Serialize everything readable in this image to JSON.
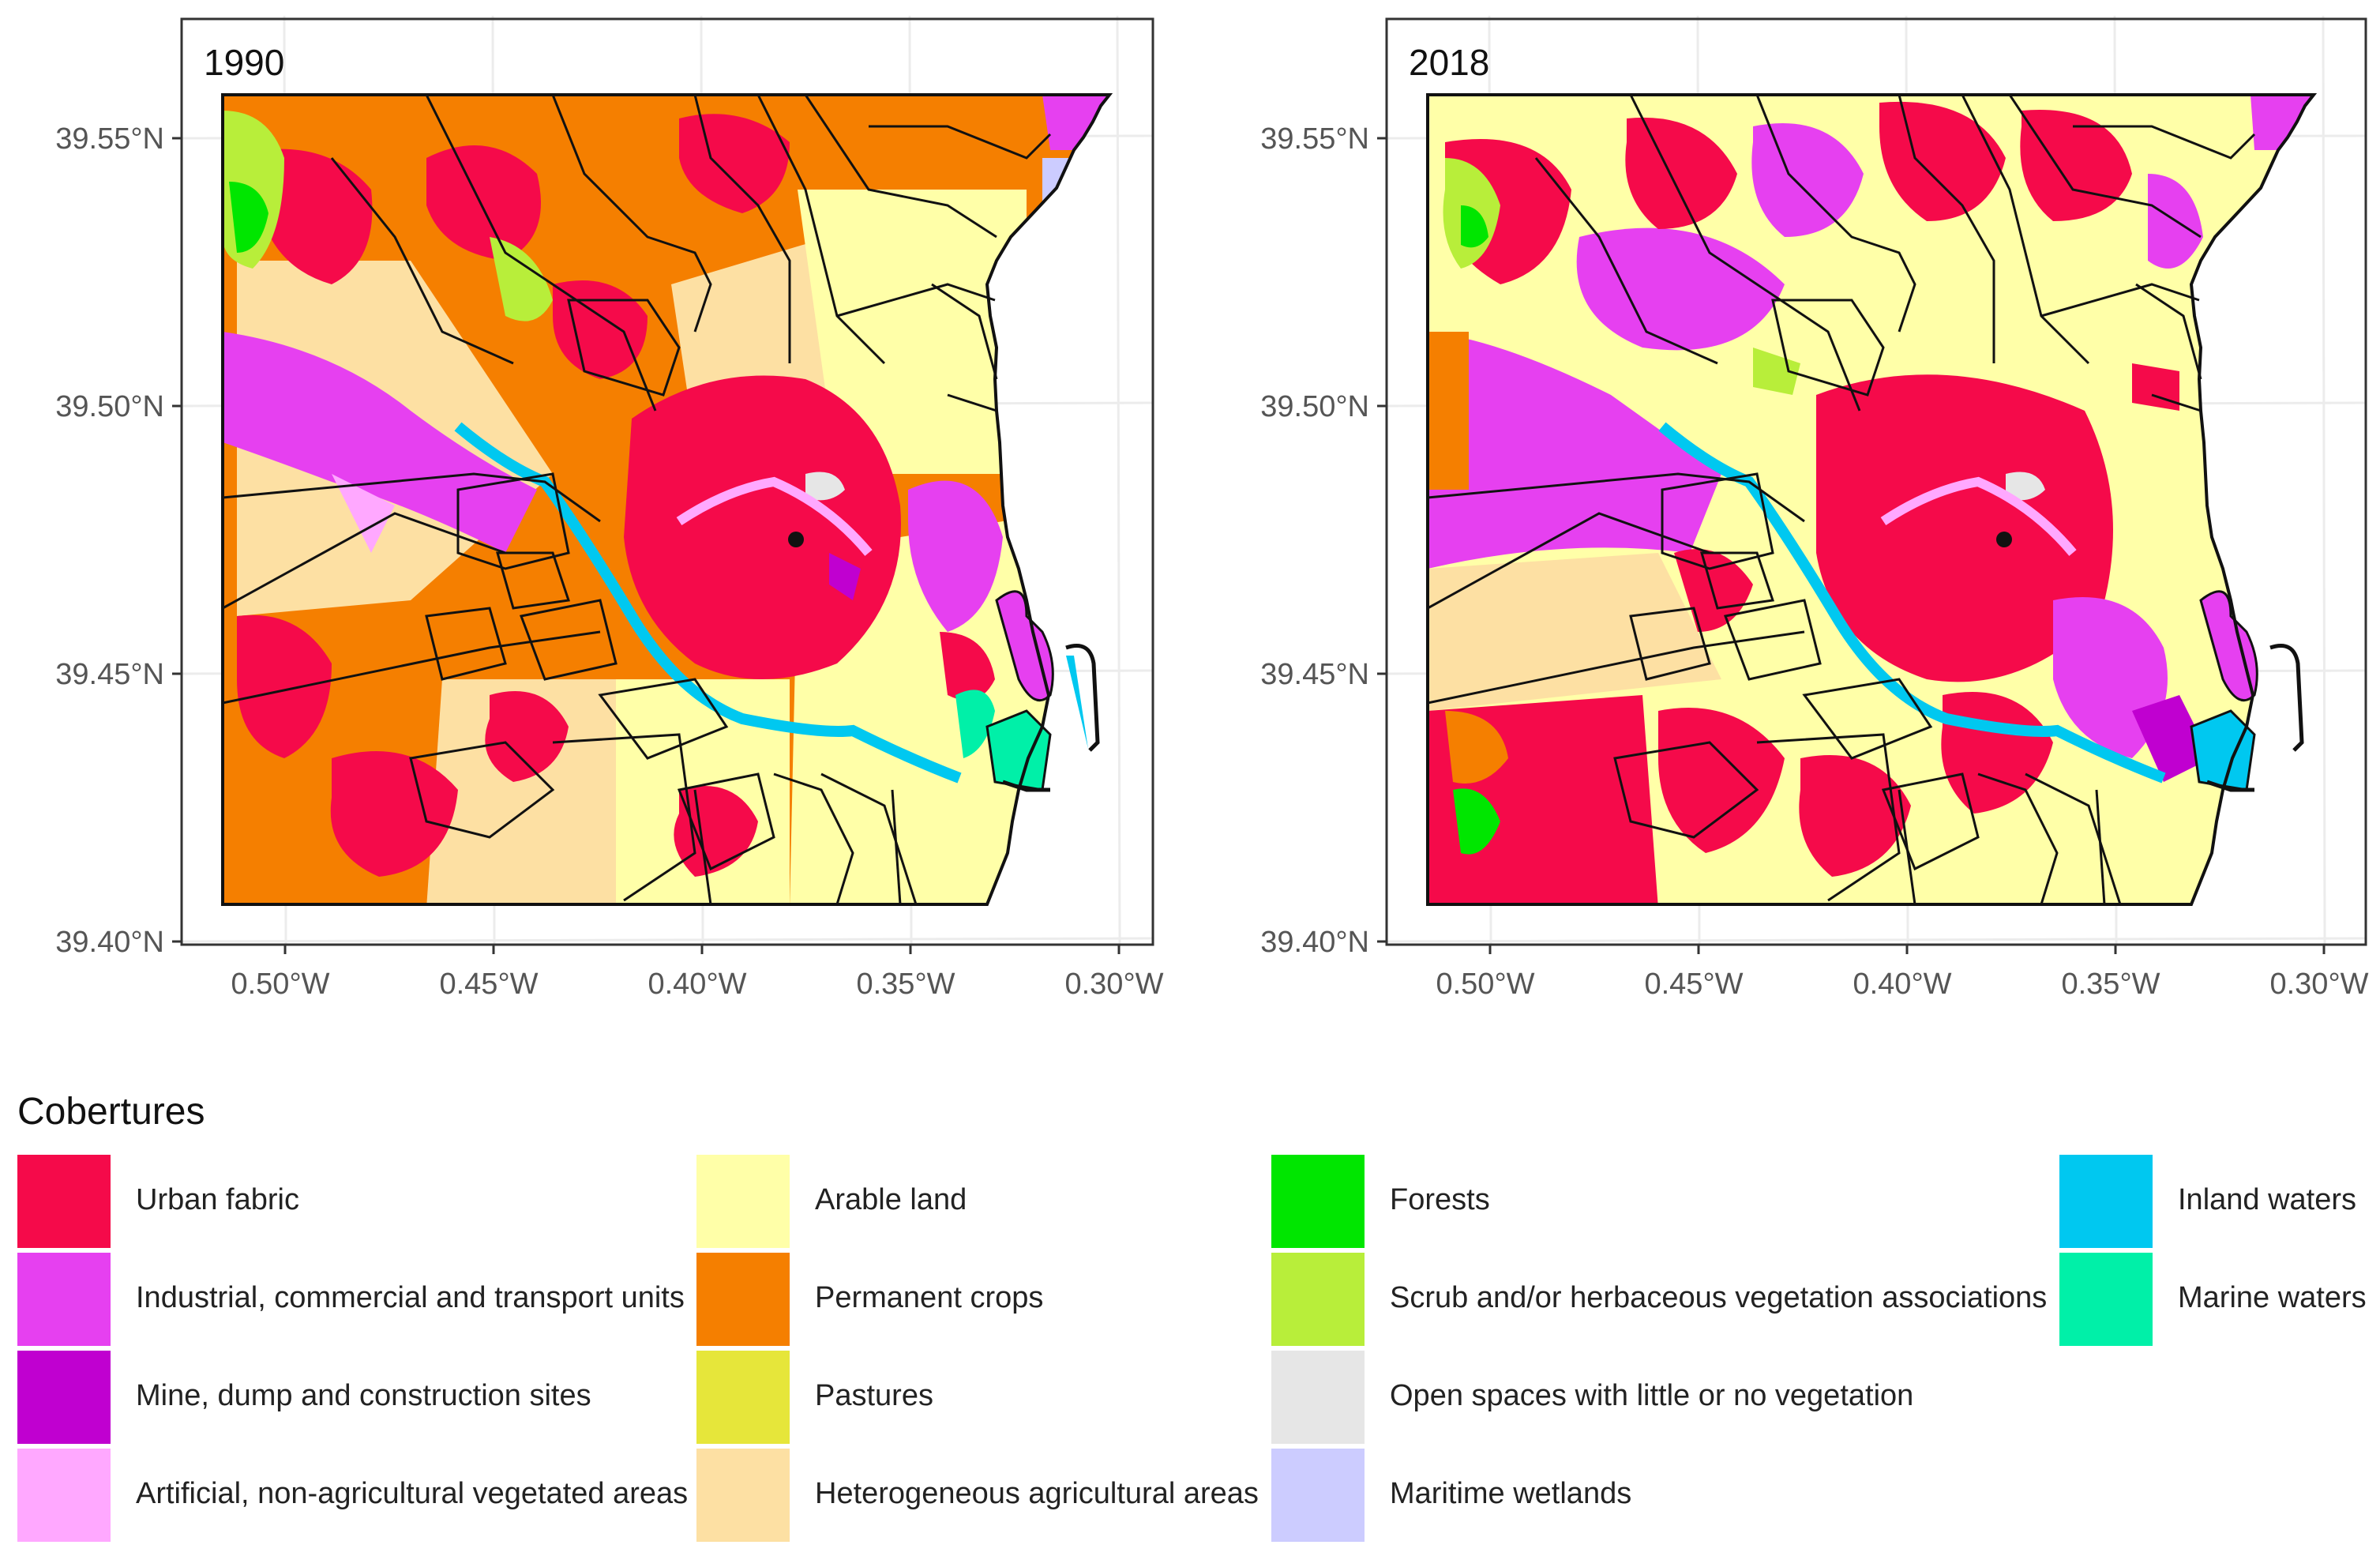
{
  "panels": [
    {
      "id": "1990",
      "label": "1990"
    },
    {
      "id": "2018",
      "label": "2018"
    }
  ],
  "axes": {
    "y_ticks": [
      "39.55°N",
      "39.50°N",
      "39.45°N",
      "39.40°N"
    ],
    "x_ticks": [
      "0.50°W",
      "0.45°W",
      "0.40°W",
      "0.35°W",
      "0.30°W"
    ]
  },
  "legend": {
    "title": "Cobertures",
    "columns": [
      [
        {
          "label": "Urban fabric",
          "color": "#f50a4a"
        },
        {
          "label": "Industrial, commercial and transport units",
          "color": "#e640f0"
        },
        {
          "label": "Mine, dump and construction sites",
          "color": "#c000d0"
        },
        {
          "label": "Artificial, non-agricultural vegetated areas",
          "color": "#ffa8ff"
        }
      ],
      [
        {
          "label": "Arable land",
          "color": "#ffffa8"
        },
        {
          "label": "Permanent crops",
          "color": "#f57f00"
        },
        {
          "label": "Pastures",
          "color": "#e6e63a"
        },
        {
          "label": "Heterogeneous agricultural areas",
          "color": "#fde0a3"
        }
      ],
      [
        {
          "label": "Forests",
          "color": "#00e600"
        },
        {
          "label": "Scrub and/or herbaceous vegetation associations",
          "color": "#b8ee3a"
        },
        {
          "label": "Open spaces with little or no vegetation",
          "color": "#e6e6e6"
        },
        {
          "label": "Maritime wetlands",
          "color": "#ccccff"
        }
      ],
      [
        {
          "label": "Inland waters",
          "color": "#00c8f0"
        },
        {
          "label": "Marine waters",
          "color": "#00f0a8"
        }
      ]
    ]
  }
}
